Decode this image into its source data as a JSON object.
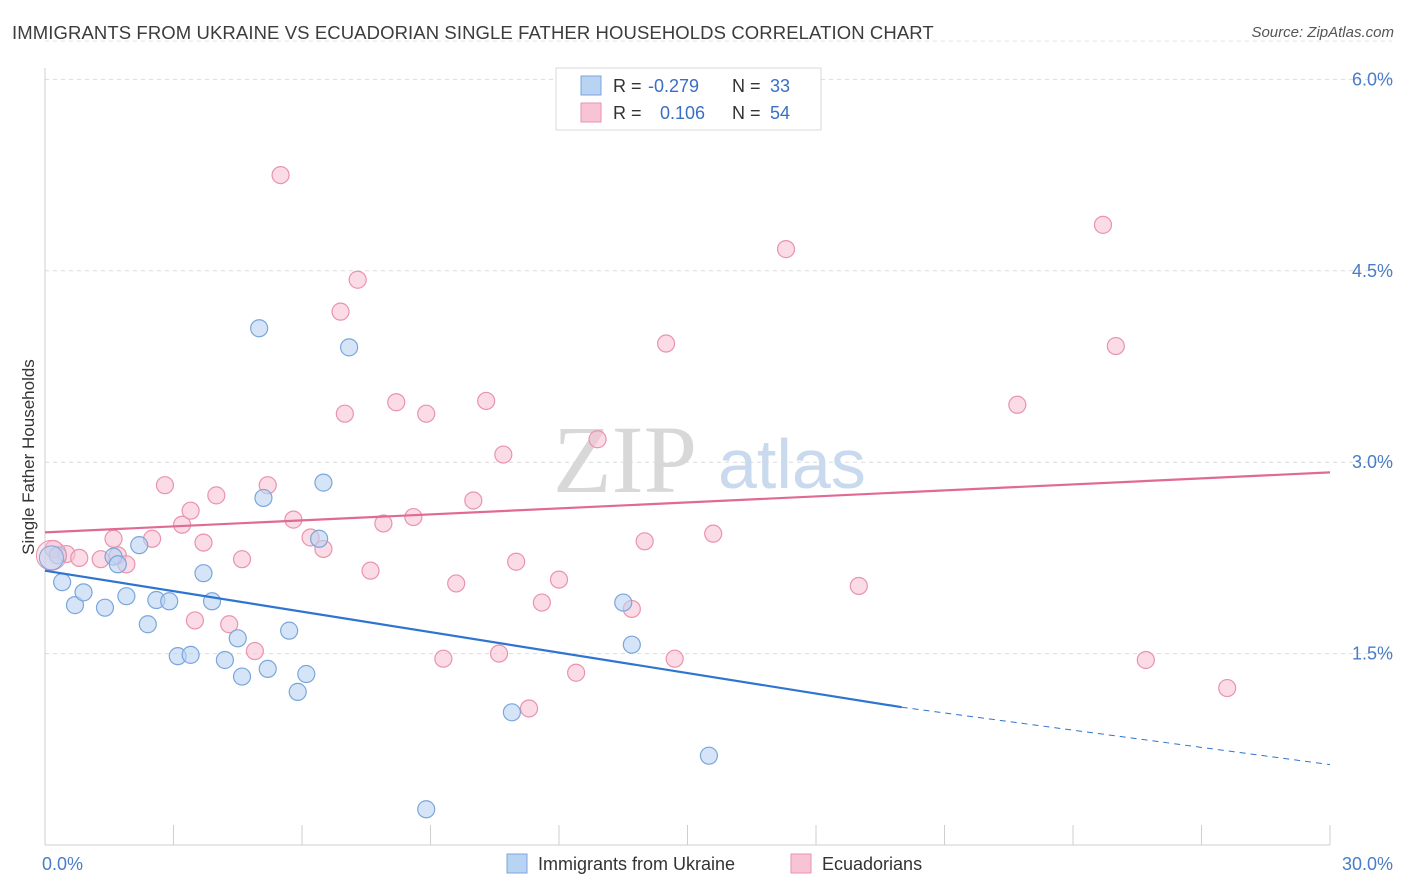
{
  "header": {
    "title": "IMMIGRANTS FROM UKRAINE VS ECUADORIAN SINGLE FATHER HOUSEHOLDS CORRELATION CHART",
    "source": "Source: ZipAtlas.com"
  },
  "watermark": {
    "zip": "ZIP",
    "atlas": "atlas"
  },
  "stats_box": {
    "rows": [
      {
        "r_label": "R =",
        "r_value": "-0.279",
        "n_label": "N =",
        "n_value": "33",
        "color": "#b9d3f2"
      },
      {
        "r_label": "R =",
        "r_value": "0.106",
        "n_label": "N =",
        "n_value": "54",
        "color": "#f8c3d4"
      }
    ]
  },
  "chart_data": {
    "type": "scatter",
    "xlabel": "",
    "ylabel": "Single Father Households",
    "xlim": [
      0,
      30
    ],
    "ylim": [
      0,
      6.3
    ],
    "x_tick_labels": [
      {
        "value": 0,
        "label": "0.0%"
      },
      {
        "value": 30,
        "label": "30.0%"
      }
    ],
    "y_tick_labels": [
      {
        "value": 1.5,
        "label": "1.5%"
      },
      {
        "value": 3.0,
        "label": "3.0%"
      },
      {
        "value": 4.5,
        "label": "4.5%"
      },
      {
        "value": 6.0,
        "label": "6.0%"
      }
    ],
    "x_minor_ticks": [
      0,
      3,
      6,
      9,
      12,
      15,
      18,
      21,
      24,
      27,
      30
    ],
    "grid": true,
    "legend_position": "bottom-center",
    "series": [
      {
        "name": "Immigrants from Ukraine",
        "color": "#b9d3f2",
        "stroke": "#7aa6dc",
        "trend_color": "#2f74d0",
        "trend": {
          "x0": 0,
          "y0": 2.15,
          "x1": 20,
          "y1": 1.08,
          "dashed_to_x": 30,
          "dashed_to_y": 0.63
        },
        "points": [
          [
            0.3,
            2.27
          ],
          [
            0.4,
            2.06
          ],
          [
            0.7,
            1.88
          ],
          [
            0.9,
            1.98
          ],
          [
            1.4,
            1.86
          ],
          [
            1.6,
            2.26
          ],
          [
            1.7,
            2.2
          ],
          [
            1.9,
            1.95
          ],
          [
            2.2,
            2.35
          ],
          [
            2.4,
            1.73
          ],
          [
            2.6,
            1.92
          ],
          [
            2.9,
            1.91
          ],
          [
            3.1,
            1.48
          ],
          [
            3.4,
            1.49
          ],
          [
            3.7,
            2.13
          ],
          [
            3.9,
            1.91
          ],
          [
            4.2,
            1.45
          ],
          [
            4.5,
            1.62
          ],
          [
            4.6,
            1.32
          ],
          [
            5.0,
            4.05
          ],
          [
            5.1,
            2.72
          ],
          [
            5.2,
            1.38
          ],
          [
            5.7,
            1.68
          ],
          [
            5.9,
            1.2
          ],
          [
            6.1,
            1.34
          ],
          [
            6.4,
            2.4
          ],
          [
            6.5,
            2.84
          ],
          [
            7.1,
            3.9
          ],
          [
            8.9,
            0.28
          ],
          [
            10.9,
            1.04
          ],
          [
            13.5,
            1.9
          ],
          [
            13.7,
            1.57
          ],
          [
            15.5,
            0.7
          ]
        ]
      },
      {
        "name": "Ecuadorians",
        "color": "#f8c3d4",
        "stroke": "#ea93ae",
        "trend_color": "#e06a92",
        "trend": {
          "x0": 0,
          "y0": 2.45,
          "x1": 30,
          "y1": 2.92
        },
        "points": [
          [
            0.2,
            2.32
          ],
          [
            0.5,
            2.28
          ],
          [
            0.8,
            2.25
          ],
          [
            1.3,
            2.24
          ],
          [
            1.7,
            2.27
          ],
          [
            1.9,
            2.2
          ],
          [
            1.6,
            2.4
          ],
          [
            2.5,
            2.4
          ],
          [
            2.8,
            2.82
          ],
          [
            3.2,
            2.51
          ],
          [
            3.4,
            2.62
          ],
          [
            3.5,
            1.76
          ],
          [
            3.7,
            2.37
          ],
          [
            4.0,
            2.74
          ],
          [
            4.3,
            1.73
          ],
          [
            4.6,
            2.24
          ],
          [
            4.9,
            1.52
          ],
          [
            5.2,
            2.82
          ],
          [
            5.5,
            5.25
          ],
          [
            5.8,
            2.55
          ],
          [
            6.2,
            2.41
          ],
          [
            6.5,
            2.32
          ],
          [
            6.9,
            4.18
          ],
          [
            7.0,
            3.38
          ],
          [
            7.3,
            4.43
          ],
          [
            7.6,
            2.15
          ],
          [
            7.9,
            2.52
          ],
          [
            8.2,
            3.47
          ],
          [
            8.6,
            2.57
          ],
          [
            8.9,
            3.38
          ],
          [
            9.3,
            1.46
          ],
          [
            9.6,
            2.05
          ],
          [
            10.0,
            2.7
          ],
          [
            10.3,
            3.48
          ],
          [
            10.6,
            1.5
          ],
          [
            10.7,
            3.06
          ],
          [
            11.0,
            2.22
          ],
          [
            11.3,
            1.07
          ],
          [
            11.6,
            1.9
          ],
          [
            12.0,
            2.08
          ],
          [
            12.4,
            1.35
          ],
          [
            12.9,
            3.18
          ],
          [
            13.7,
            1.85
          ],
          [
            14.0,
            2.38
          ],
          [
            14.5,
            3.93
          ],
          [
            14.7,
            1.46
          ],
          [
            15.6,
            2.44
          ],
          [
            17.3,
            4.67
          ],
          [
            19.0,
            2.03
          ],
          [
            22.7,
            3.45
          ],
          [
            24.7,
            4.86
          ],
          [
            25.0,
            3.91
          ],
          [
            25.7,
            1.45
          ],
          [
            27.6,
            1.23
          ]
        ]
      }
    ]
  }
}
